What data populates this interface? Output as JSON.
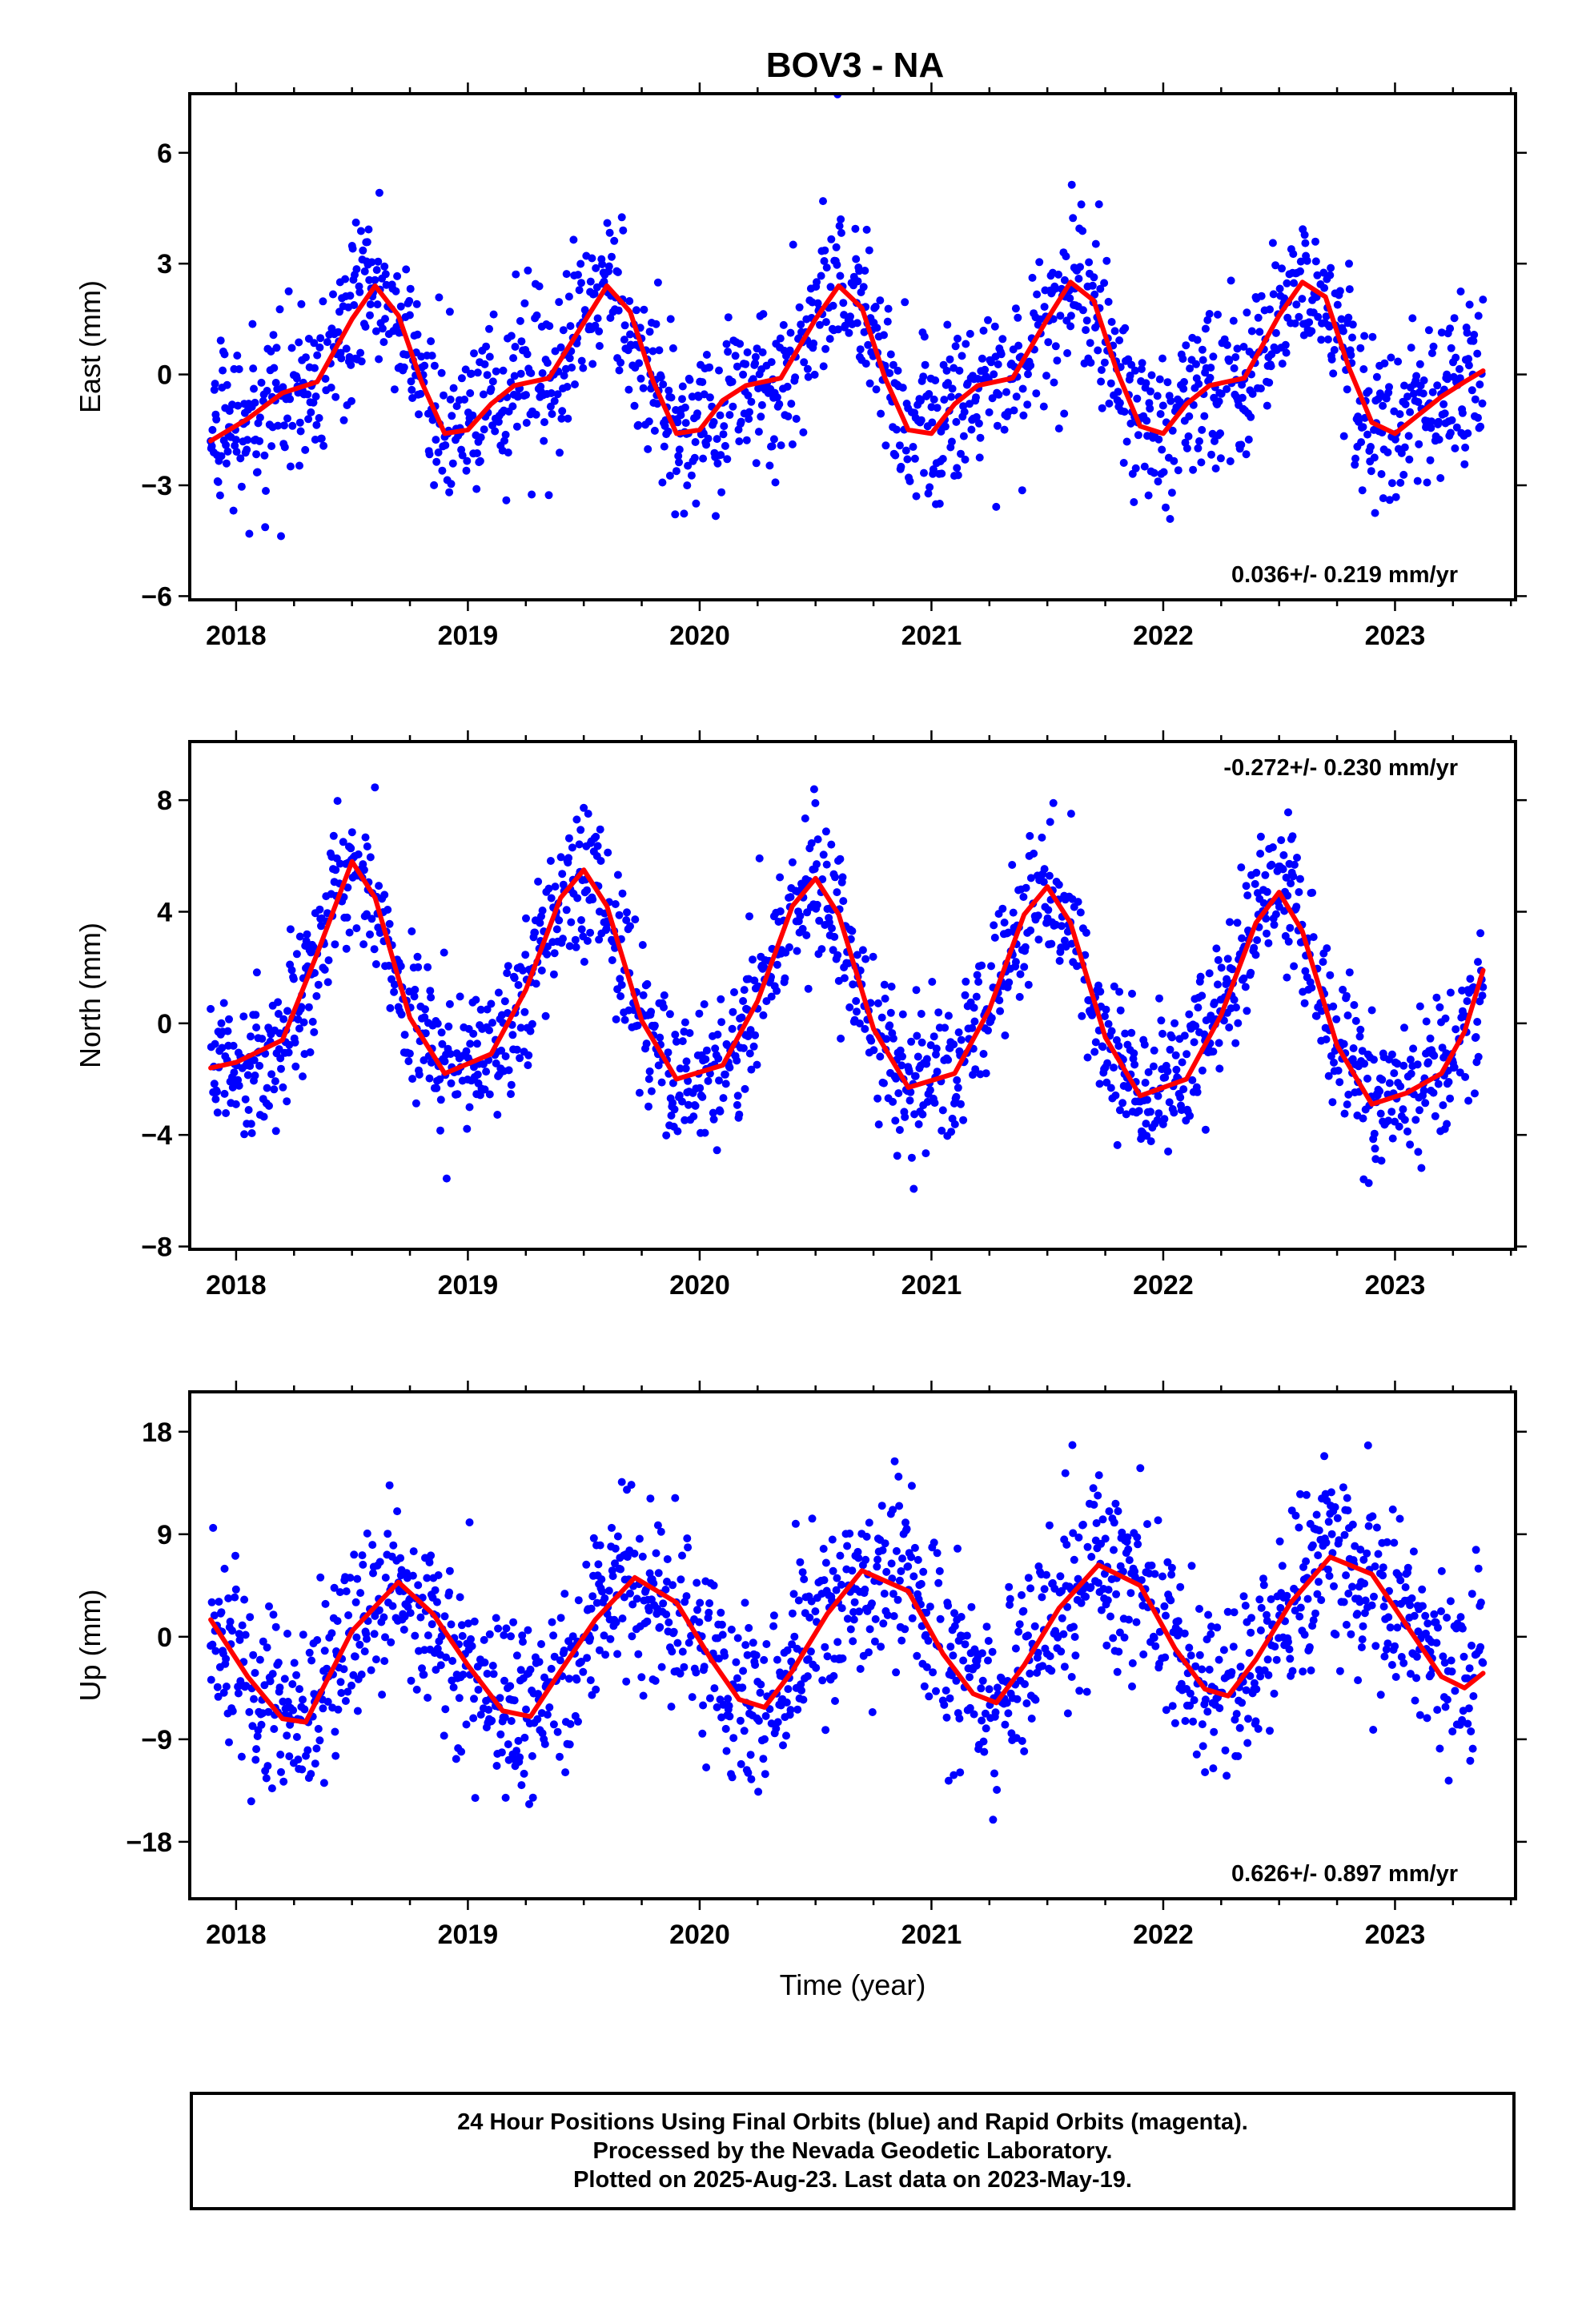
{
  "title": "BOV3 - NA",
  "colors": {
    "final_orbits": "#0000ff",
    "rapid_orbits": "#ff00ff",
    "model_fit": "#ff0000",
    "frame": "#000000",
    "background": "#ffffff"
  },
  "footer": {
    "lines": [
      "24 Hour Positions Using Final Orbits (blue) and Rapid Orbits (magenta).",
      "Processed by the Nevada Geodetic Laboratory.",
      "Plotted on 2025-Aug-23. Last data on 2023-May-19."
    ]
  },
  "chart_data": [
    {
      "type": "scatter",
      "panel": "east",
      "ylabel": "East (mm)",
      "xlabel": "",
      "xlim": [
        2017.8,
        2023.52
      ],
      "ylim": [
        -6.1,
        7.6
      ],
      "x_ticks": [
        "2018",
        "2019",
        "2020",
        "2021",
        "2022",
        "2023"
      ],
      "y_ticks": [
        "6",
        "3",
        "0",
        "-3",
        "-6"
      ],
      "rate_text": "0.036+/- 0.219 mm/yr",
      "rate_position": "bottom-right",
      "series": [
        {
          "name": "Final Orbits",
          "color": "#0000ff",
          "data_start": 2017.89,
          "data_end": 2023.38,
          "seasonal_model": {
            "trend": 0.036,
            "amplitude": 2.1,
            "phase_year": 0.6,
            "noise_sd": 1.1
          }
        },
        {
          "name": "model fit",
          "color": "#ff0000",
          "x": [
            2017.89,
            2018.05,
            2018.2,
            2018.35,
            2018.5,
            2018.6,
            2018.7,
            2018.8,
            2018.9,
            2019.0,
            2019.1,
            2019.2,
            2019.35,
            2019.5,
            2019.6,
            2019.7,
            2019.8,
            2019.9,
            2020.0,
            2020.1,
            2020.2,
            2020.35,
            2020.5,
            2020.6,
            2020.7,
            2020.8,
            2020.9,
            2021.0,
            2021.1,
            2021.2,
            2021.35,
            2021.5,
            2021.6,
            2021.7,
            2021.8,
            2021.9,
            2022.0,
            2022.1,
            2022.2,
            2022.35,
            2022.5,
            2022.6,
            2022.7,
            2022.8,
            2022.9,
            2023.0,
            2023.1,
            2023.2,
            2023.3,
            2023.38
          ],
          "y": [
            -1.8,
            -1.2,
            -0.5,
            -0.2,
            1.5,
            2.4,
            1.6,
            -0.2,
            -1.6,
            -1.5,
            -0.8,
            -0.3,
            -0.1,
            1.4,
            2.4,
            1.7,
            -0.2,
            -1.6,
            -1.5,
            -0.7,
            -0.3,
            -0.1,
            1.5,
            2.4,
            1.8,
            -0.1,
            -1.5,
            -1.6,
            -0.8,
            -0.3,
            -0.1,
            1.5,
            2.5,
            2.0,
            0.1,
            -1.4,
            -1.6,
            -0.8,
            -0.3,
            -0.1,
            1.6,
            2.5,
            2.1,
            0.2,
            -1.3,
            -1.6,
            -1.1,
            -0.6,
            -0.2,
            0.1
          ]
        }
      ]
    },
    {
      "type": "scatter",
      "panel": "north",
      "ylabel": "North (mm)",
      "xlabel": "",
      "xlim": [
        2017.8,
        2023.52
      ],
      "ylim": [
        -8.1,
        10.1
      ],
      "x_ticks": [
        "2018",
        "2019",
        "2020",
        "2021",
        "2022",
        "2023"
      ],
      "y_ticks": [
        "8",
        "4",
        "0",
        "-4",
        "-8"
      ],
      "rate_text": "-0.272+/- 0.230 mm/yr",
      "rate_position": "top-right",
      "series": [
        {
          "name": "Final Orbits",
          "color": "#0000ff",
          "data_start": 2017.89,
          "data_end": 2023.38,
          "seasonal_model": {
            "trend": -0.272,
            "amplitude": 4.0,
            "phase_year": 0.5,
            "noise_sd": 1.3
          }
        },
        {
          "name": "model fit",
          "color": "#ff0000",
          "x": [
            2017.89,
            2018.0,
            2018.2,
            2018.35,
            2018.5,
            2018.6,
            2018.75,
            2018.9,
            2019.1,
            2019.25,
            2019.4,
            2019.5,
            2019.6,
            2019.75,
            2019.9,
            2020.1,
            2020.25,
            2020.4,
            2020.5,
            2020.6,
            2020.75,
            2020.9,
            2021.1,
            2021.25,
            2021.4,
            2021.5,
            2021.6,
            2021.75,
            2021.9,
            2022.1,
            2022.25,
            2022.4,
            2022.5,
            2022.6,
            2022.75,
            2022.9,
            2023.05,
            2023.2,
            2023.3,
            2023.38
          ],
          "y": [
            -1.6,
            -1.4,
            -0.6,
            2.5,
            5.8,
            4.5,
            0.2,
            -1.8,
            -1.1,
            1.2,
            4.5,
            5.5,
            4.2,
            0.1,
            -2.0,
            -1.5,
            0.8,
            4.2,
            5.2,
            3.9,
            -0.2,
            -2.3,
            -1.8,
            0.5,
            3.9,
            4.9,
            3.6,
            -0.5,
            -2.6,
            -2.0,
            0.3,
            3.6,
            4.7,
            3.3,
            -0.8,
            -2.9,
            -2.5,
            -1.8,
            -0.3,
            1.9
          ]
        }
      ]
    },
    {
      "type": "scatter",
      "panel": "up",
      "ylabel": "Up (mm)",
      "xlabel": "Time (year)",
      "xlim": [
        2017.8,
        2023.52
      ],
      "ylim": [
        -23.0,
        21.5
      ],
      "x_ticks": [
        "2018",
        "2019",
        "2020",
        "2021",
        "2022",
        "2023"
      ],
      "y_ticks": [
        "18",
        "9",
        "0",
        "-9",
        "-18"
      ],
      "rate_text": "0.626+/- 0.897 mm/yr",
      "rate_position": "bottom-right",
      "series": [
        {
          "name": "Final Orbits",
          "color": "#0000ff",
          "data_start": 2017.89,
          "data_end": 2023.38,
          "seasonal_model": {
            "trend": 0.626,
            "amplitude": 6.0,
            "phase_year": 0.75,
            "noise_sd": 4.0
          }
        },
        {
          "name": "model fit",
          "color": "#ff0000",
          "x": [
            2017.89,
            2018.05,
            2018.2,
            2018.3,
            2018.5,
            2018.7,
            2018.85,
            2019.0,
            2019.15,
            2019.27,
            2019.4,
            2019.55,
            2019.72,
            2019.9,
            2020.05,
            2020.17,
            2020.28,
            2020.4,
            2020.55,
            2020.7,
            2020.9,
            2021.05,
            2021.18,
            2021.28,
            2021.4,
            2021.55,
            2021.72,
            2021.9,
            2022.05,
            2022.18,
            2022.28,
            2022.4,
            2022.55,
            2022.72,
            2022.9,
            2023.05,
            2023.2,
            2023.3,
            2023.38
          ],
          "y": [
            1.5,
            -3.5,
            -7.2,
            -7.5,
            0.5,
            4.8,
            2.0,
            -2.5,
            -6.5,
            -7.0,
            -3.0,
            1.5,
            5.2,
            3.0,
            -2.0,
            -5.5,
            -6.2,
            -3.0,
            2.0,
            5.8,
            4.0,
            -1.5,
            -5.0,
            -5.8,
            -2.5,
            2.5,
            6.3,
            4.5,
            -1.0,
            -4.6,
            -5.2,
            -2.0,
            3.0,
            7.0,
            5.5,
            1.0,
            -3.5,
            -4.5,
            -3.2
          ]
        }
      ]
    }
  ]
}
